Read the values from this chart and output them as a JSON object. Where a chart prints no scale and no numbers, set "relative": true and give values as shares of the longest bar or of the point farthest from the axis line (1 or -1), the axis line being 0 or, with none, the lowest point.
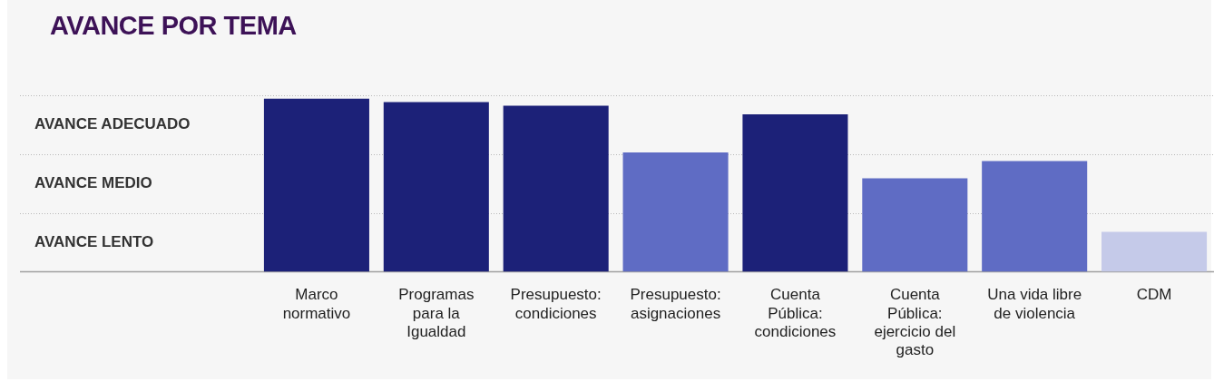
{
  "chart_data": {
    "type": "bar",
    "title": "AVANCE POR TEMA",
    "relative": true,
    "categories": [
      "Marco normativo",
      "Programas para la Igualdad",
      "Presupuesto: condiciones",
      "Presupuesto: asignaciones",
      "Cuenta Pública: condiciones",
      "Cuenta Pública: ejercicio del gasto",
      "Una vida libre de violencia",
      "CDM"
    ],
    "values": [
      1,
      0.98,
      0.96,
      0.69,
      0.91,
      0.54,
      0.64,
      0.23
    ],
    "colors": [
      "#1c2178",
      "#1c2178",
      "#1c2178",
      "#5f6cc4",
      "#1c2178",
      "#5f6cc4",
      "#5f6cc4",
      "#c5cae9"
    ],
    "ref_lines": [
      {
        "axis": "y",
        "value": 0.34,
        "color": "#b8b8b8",
        "line_style": "dotted"
      },
      {
        "axis": "y",
        "value": 0.68,
        "color": "#b8b8b8",
        "line_style": "dotted"
      },
      {
        "axis": "y",
        "value": 1.02,
        "color": "#b8b8b8",
        "line_style": "dotted"
      }
    ],
    "annotations": [
      "AVANCE LENTO",
      "AVANCE MEDIO",
      "AVANCE ADECUADO"
    ],
    "legend": false
  }
}
